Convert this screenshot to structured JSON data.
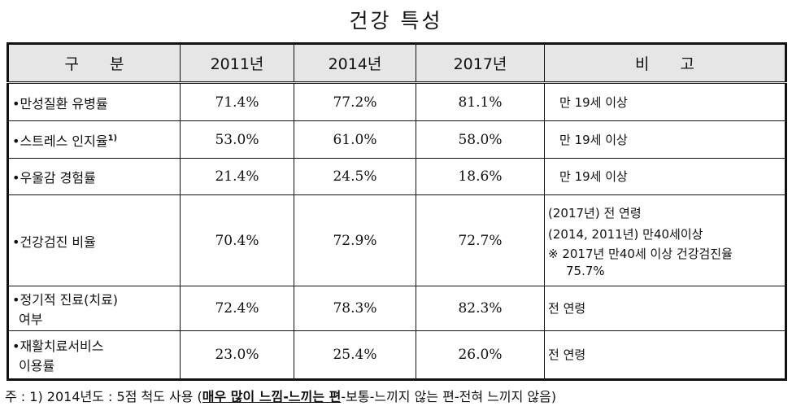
{
  "title": "건강 특성",
  "headers": [
    "구　　분",
    "2011년",
    "2014년",
    "2017년",
    "비　　고"
  ],
  "rows": [
    {
      "label": "•만성질환 유병률",
      "v2011": "71.4%",
      "v2014": "77.2%",
      "v2017": "81.1%",
      "note": [
        "만 19세 이상"
      ]
    },
    {
      "label": "•스트레스 인지율",
      "sup": "1)",
      "v2011": "53.0%",
      "v2014": "61.0%",
      "v2017": "58.0%",
      "note": [
        "만 19세 이상"
      ]
    },
    {
      "label": "•우울감 경험률",
      "v2011": "21.4%",
      "v2014": "24.5%",
      "v2017": "18.6%",
      "note": [
        "만 19세 이상"
      ]
    },
    {
      "label": "•건강검진 비율",
      "v2011": "70.4%",
      "v2014": "72.9%",
      "v2017": "72.7%",
      "note": [
        "(2017년) 전 연령",
        "(2014, 2011년) 만40세이상",
        "※ 2017년 만40세 이상 건강검진율",
        "75.7%"
      ]
    },
    {
      "label": "•정기적 진료(치료)",
      "label2": "여부",
      "v2011": "72.4%",
      "v2014": "78.3%",
      "v2017": "82.3%",
      "note": [
        "전 연령"
      ]
    },
    {
      "label": "•재활치료서비스",
      "label2": "이용률",
      "v2011": "23.0%",
      "v2014": "25.4%",
      "v2017": "26.0%",
      "note": [
        "전 연령"
      ]
    }
  ],
  "footnote": {
    "prefix": "주 : 1) 2014년도 : 5점 척도 사용 (",
    "underlined": "매우 많이 느낌-느끼는 편",
    "suffix": "-보통-느끼지 않는 편-전혀 느끼지 않음)"
  }
}
